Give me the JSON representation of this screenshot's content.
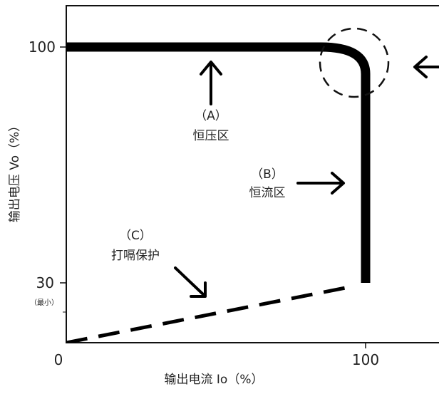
{
  "chart_data": {
    "type": "line",
    "xlabel": "输出电流 Io（%）",
    "ylabel": "输出电压 Vo（%）",
    "x_ticks": [
      "0",
      "100"
    ],
    "y_ticks": [
      "100",
      "30"
    ],
    "y_tick_note": "（最小）",
    "series": [
      {
        "style": "solid-thick",
        "points": [
          [
            0,
            100
          ],
          [
            85,
            100
          ],
          [
            93,
            97
          ],
          [
            100,
            92
          ],
          [
            100,
            30
          ]
        ]
      },
      {
        "style": "dashed",
        "points": [
          [
            0,
            0
          ],
          [
            100,
            30
          ]
        ]
      }
    ],
    "annotations": [
      {
        "label": "（A）",
        "text": "恒压区"
      },
      {
        "label": "（B）",
        "text": "恒流区"
      },
      {
        "label": "（C）",
        "text": "打嗝保护"
      }
    ],
    "highlight": "dashed-circle-at-corner"
  }
}
